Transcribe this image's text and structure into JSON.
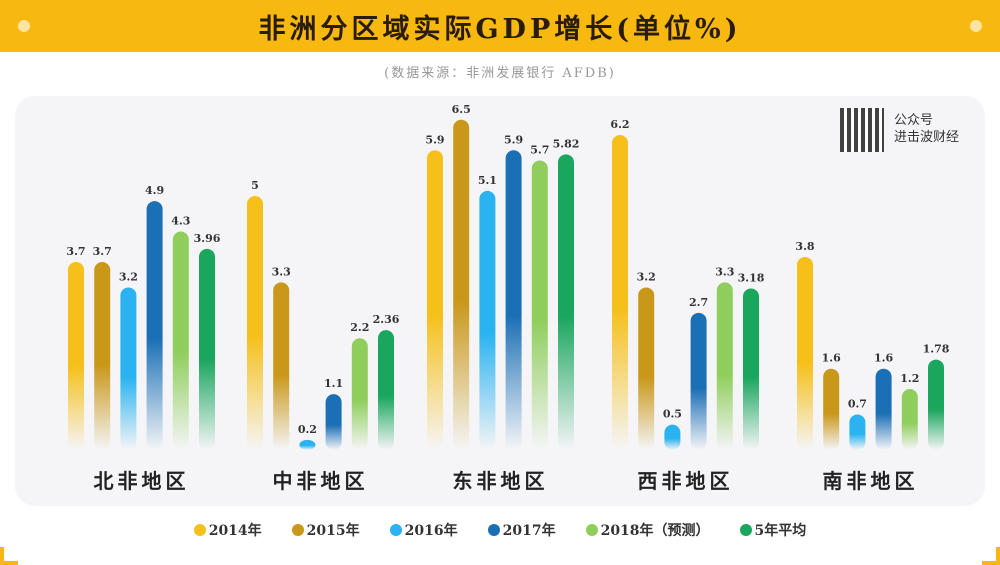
{
  "header": {
    "title": "非洲分区域实际GDP增长(单位%)",
    "source": "(数据来源：非洲发展银行 AFDB)"
  },
  "watermark": {
    "line1": "公众号",
    "line2": "进击波财经"
  },
  "chart_data": {
    "type": "bar",
    "title": "非洲分区域实际GDP增长(单位%)",
    "categories": [
      "北非地区",
      "中非地区",
      "东非地区",
      "西非地区",
      "南非地区"
    ],
    "series": [
      {
        "name": "2014年",
        "color": "#f5c01a",
        "values": [
          "3.7",
          "5",
          "5.9",
          "6.2",
          "3.8"
        ]
      },
      {
        "name": "2015年",
        "color": "#c9981a",
        "values": [
          "3.7",
          "3.3",
          "6.5",
          "3.2",
          "1.6"
        ]
      },
      {
        "name": "2016年",
        "color": "#2ab3f0",
        "values": [
          "3.2",
          "0.2",
          "5.1",
          "0.5",
          "0.7"
        ]
      },
      {
        "name": "2017年",
        "color": "#1a6fb5",
        "values": [
          "4.9",
          "1.1",
          "5.9",
          "2.7",
          "1.6"
        ]
      },
      {
        "name": "2018年（预测）",
        "color": "#8fce5c",
        "values": [
          "4.3",
          "2.2",
          "5.7",
          "3.3",
          "1.2"
        ]
      },
      {
        "name": "5年平均",
        "color": "#1ba65e",
        "values": [
          "3.96",
          "2.36",
          "5.82",
          "3.18",
          "1.78"
        ]
      }
    ],
    "ylim": [
      0,
      7
    ],
    "grid": false,
    "legend": "bottom"
  }
}
